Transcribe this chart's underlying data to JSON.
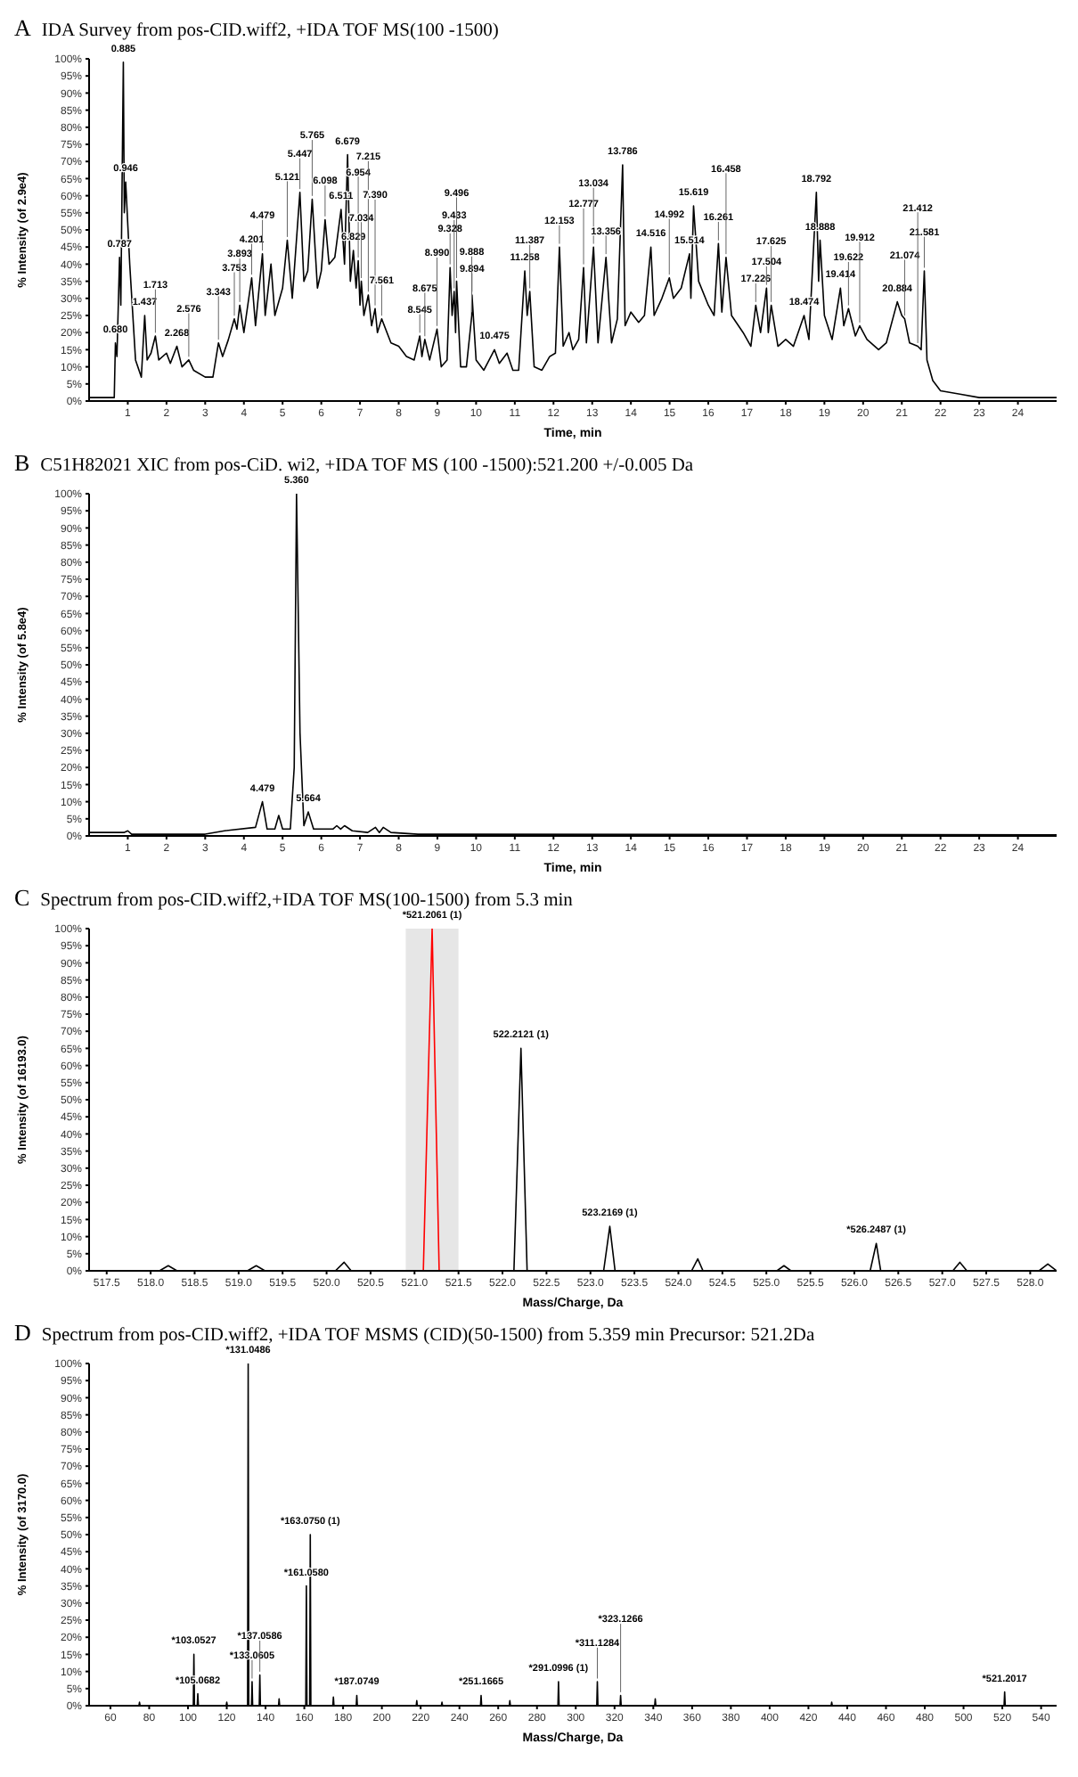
{
  "chart_data": [
    {
      "type": "line",
      "title": "IDA Survey from pos-CID.wiff2, +IDA TOF MS(100 -1500)",
      "xlabel": "Time, min",
      "ylabel": "% Intensity (of 2.9e4)",
      "xlim": [
        0,
        25
      ],
      "xticks": [
        1,
        2,
        3,
        4,
        5,
        6,
        7,
        8,
        9,
        10,
        11,
        12,
        13,
        14,
        15,
        16,
        17,
        18,
        19,
        20,
        21,
        22,
        23,
        24
      ],
      "ylim": [
        0,
        100
      ],
      "yticks": [
        {
          "value": 0,
          "label": "0%"
        },
        {
          "value": 5,
          "label": "5%"
        },
        {
          "value": 10,
          "label": "10%"
        },
        {
          "value": 15,
          "label": "15%"
        },
        {
          "value": 20,
          "label": "20%"
        },
        {
          "value": 25,
          "label": "25%"
        },
        {
          "value": 30,
          "label": "30%"
        },
        {
          "value": 35,
          "label": "35%"
        },
        {
          "value": 40,
          "label": "40%"
        },
        {
          "value": 45,
          "label": "45%"
        },
        {
          "value": 50,
          "label": "50%"
        },
        {
          "value": 55,
          "label": "55%"
        },
        {
          "value": 60,
          "label": "60%"
        },
        {
          "value": 65,
          "label": "65%"
        },
        {
          "value": 70,
          "label": "70%"
        },
        {
          "value": 75,
          "label": "75%"
        },
        {
          "value": 80,
          "label": "80%"
        },
        {
          "value": 85,
          "label": "85%"
        },
        {
          "value": 90,
          "label": "90%"
        },
        {
          "value": 95,
          "label": "95%"
        },
        {
          "value": 100,
          "label": "100%"
        }
      ],
      "series": [
        {
          "color": "#000000",
          "x": [
            0,
            0.6,
            0.65,
            0.68,
            0.72,
            0.787,
            0.82,
            0.885,
            0.91,
            0.946,
            1.05,
            1.2,
            1.35,
            1.437,
            1.5,
            1.6,
            1.713,
            1.8,
            2.0,
            2.1,
            2.268,
            2.4,
            2.576,
            2.7,
            3.0,
            3.2,
            3.343,
            3.45,
            3.6,
            3.753,
            3.82,
            3.893,
            4.0,
            4.201,
            4.3,
            4.479,
            4.55,
            4.7,
            4.8,
            5.0,
            5.121,
            5.25,
            5.447,
            5.55,
            5.65,
            5.765,
            5.9,
            6.0,
            6.098,
            6.2,
            6.35,
            6.511,
            6.6,
            6.679,
            6.75,
            6.829,
            6.9,
            6.954,
            7.0,
            7.034,
            7.1,
            7.215,
            7.3,
            7.39,
            7.45,
            7.561,
            7.8,
            8.0,
            8.2,
            8.4,
            8.545,
            8.6,
            8.675,
            8.8,
            8.99,
            9.1,
            9.25,
            9.328,
            9.38,
            9.433,
            9.47,
            9.496,
            9.6,
            9.75,
            9.888,
            9.894,
            10.0,
            10.2,
            10.475,
            10.6,
            10.8,
            10.95,
            11.1,
            11.258,
            11.32,
            11.387,
            11.5,
            11.7,
            11.9,
            12.05,
            12.153,
            12.25,
            12.4,
            12.5,
            12.65,
            12.777,
            12.85,
            13.034,
            13.15,
            13.356,
            13.5,
            13.65,
            13.786,
            13.85,
            14.0,
            14.2,
            14.35,
            14.516,
            14.6,
            14.8,
            14.992,
            15.1,
            15.3,
            15.514,
            15.55,
            15.619,
            15.75,
            16.0,
            16.15,
            16.261,
            16.35,
            16.458,
            16.6,
            16.9,
            17.1,
            17.226,
            17.35,
            17.504,
            17.55,
            17.625,
            17.8,
            18.0,
            18.2,
            18.474,
            18.6,
            18.792,
            18.85,
            18.888,
            19.0,
            19.2,
            19.414,
            19.5,
            19.622,
            19.8,
            19.912,
            20.1,
            20.4,
            20.6,
            20.884,
            21.0,
            21.074,
            21.2,
            21.412,
            21.5,
            21.581,
            21.65,
            21.8,
            22.0,
            22.5,
            23,
            24,
            25
          ],
          "values": [
            1,
            1,
            1,
            17,
            13,
            42,
            28,
            99,
            55,
            64,
            40,
            12,
            7,
            25,
            12,
            14,
            19,
            12,
            14,
            11,
            16,
            10,
            12,
            9,
            7,
            7,
            17,
            13,
            18,
            24,
            21,
            28,
            20,
            36,
            22,
            43,
            25,
            40,
            25,
            33,
            47,
            30,
            61,
            35,
            38,
            59,
            33,
            38,
            53,
            40,
            42,
            56,
            40,
            72,
            35,
            44,
            33,
            41,
            28,
            35,
            25,
            31,
            22,
            27,
            20,
            24,
            17,
            16,
            13,
            12,
            19,
            13,
            18,
            12,
            21,
            10,
            12,
            39,
            25,
            32,
            20,
            35,
            10,
            10,
            25,
            31,
            12,
            9,
            15,
            11,
            14,
            9,
            9,
            38,
            25,
            32,
            10,
            9,
            13,
            14,
            45,
            16,
            20,
            15,
            18,
            39,
            17,
            45,
            17,
            42,
            17,
            24,
            69,
            22,
            26,
            23,
            25,
            45,
            25,
            30,
            36,
            30,
            33,
            43,
            30,
            57,
            35,
            28,
            25,
            46,
            26,
            42,
            25,
            20,
            16,
            28,
            20,
            33,
            20,
            28,
            16,
            18,
            16,
            25,
            18,
            61,
            35,
            47,
            25,
            18,
            33,
            22,
            27,
            19,
            22,
            18,
            15,
            17,
            29,
            25,
            24,
            17,
            16,
            15,
            38,
            12,
            6,
            3,
            2,
            1,
            1,
            1
          ]
        }
      ],
      "annotations": [
        "A",
        {
          "text": "0.680",
          "x": 0.68,
          "y": 17
        },
        {
          "text": "0.787",
          "x": 0.787,
          "y": 42
        },
        {
          "text": "0.885",
          "x": 0.885,
          "y": 99
        },
        {
          "text": "0.946",
          "x": 0.946,
          "y": 64
        },
        {
          "text": "1.437",
          "x": 1.437,
          "y": 25
        },
        {
          "text": "1.713",
          "x": 1.713,
          "y": 19
        },
        {
          "text": "2.268",
          "x": 2.268,
          "y": 16
        },
        {
          "text": "2.576",
          "x": 2.576,
          "y": 12
        },
        {
          "text": "3.343",
          "x": 3.343,
          "y": 17
        },
        {
          "text": "3.753",
          "x": 3.753,
          "y": 24
        },
        {
          "text": "3.893",
          "x": 3.893,
          "y": 28
        },
        {
          "text": "4.201",
          "x": 4.201,
          "y": 36
        },
        {
          "text": "4.479",
          "x": 4.479,
          "y": 43
        },
        {
          "text": "5.121",
          "x": 5.121,
          "y": 47
        },
        {
          "text": "5.447",
          "x": 5.447,
          "y": 61
        },
        {
          "text": "5.765",
          "x": 5.765,
          "y": 59
        },
        {
          "text": "6.098",
          "x": 6.098,
          "y": 53
        },
        {
          "text": "6.511",
          "x": 6.511,
          "y": 56
        },
        {
          "text": "6.679",
          "x": 6.679,
          "y": 72
        },
        {
          "text": "6.829",
          "x": 6.829,
          "y": 44
        },
        {
          "text": "6.954",
          "x": 6.954,
          "y": 41
        },
        {
          "text": "7.034",
          "x": 7.034,
          "y": 35
        },
        {
          "text": "7.215",
          "x": 7.215,
          "y": 31
        },
        {
          "text": "7.390",
          "x": 7.39,
          "y": 27
        },
        {
          "text": "7.561",
          "x": 7.561,
          "y": 24
        },
        {
          "text": "8.545",
          "x": 8.545,
          "y": 19
        },
        {
          "text": "8.675",
          "x": 8.675,
          "y": 18
        },
        {
          "text": "8.990",
          "x": 8.99,
          "y": 21
        },
        {
          "text": "9.328",
          "x": 9.328,
          "y": 39
        },
        {
          "text": "9.433",
          "x": 9.433,
          "y": 32
        },
        {
          "text": "9.496",
          "x": 9.496,
          "y": 35
        },
        {
          "text": "9.894",
          "x": 9.894,
          "y": 31
        },
        {
          "text": "9.888",
          "x": 9.888,
          "y": 25
        },
        {
          "text": "10.475",
          "x": 10.475,
          "y": 15
        },
        {
          "text": "11.258",
          "x": 11.258,
          "y": 38
        },
        {
          "text": "11.387",
          "x": 11.387,
          "y": 32
        },
        {
          "text": "12.153",
          "x": 12.153,
          "y": 45
        },
        {
          "text": "12.777",
          "x": 12.777,
          "y": 39
        },
        {
          "text": "13.034",
          "x": 13.034,
          "y": 45
        },
        {
          "text": "13.356",
          "x": 13.356,
          "y": 42
        },
        {
          "text": "13.786",
          "x": 13.786,
          "y": 69
        },
        {
          "text": "14.516",
          "x": 14.516,
          "y": 45
        },
        {
          "text": "14.992",
          "x": 14.992,
          "y": 36
        },
        {
          "text": "15.514",
          "x": 15.514,
          "y": 43
        },
        {
          "text": "15.619",
          "x": 15.619,
          "y": 57
        },
        {
          "text": "16.261",
          "x": 16.261,
          "y": 46
        },
        {
          "text": "16.458",
          "x": 16.458,
          "y": 42
        },
        {
          "text": "17.226",
          "x": 17.226,
          "y": 28
        },
        {
          "text": "17.504",
          "x": 17.504,
          "y": 33
        },
        {
          "text": "17.625",
          "x": 17.625,
          "y": 28
        },
        {
          "text": "18.474",
          "x": 18.474,
          "y": 25
        },
        {
          "text": "18.792",
          "x": 18.792,
          "y": 61
        },
        {
          "text": "18.888",
          "x": 18.888,
          "y": 47
        },
        {
          "text": "19.414",
          "x": 19.414,
          "y": 33
        },
        {
          "text": "19.622",
          "x": 19.622,
          "y": 27
        },
        {
          "text": "19.912",
          "x": 19.912,
          "y": 22
        },
        {
          "text": "20.884",
          "x": 20.884,
          "y": 29
        },
        {
          "text": "21.074",
          "x": 21.074,
          "y": 24
        },
        {
          "text": "21.581",
          "x": 21.581,
          "y": 38
        },
        {
          "text": "21.412",
          "x": 21.412,
          "y": 16
        }
      ]
    },
    {
      "type": "line",
      "title": "C51H82021 XIC from pos-CiD. wi2, +IDA TOF MS (100 -1500):521.200 +/-0.005 Da",
      "xlabel": "Time, min",
      "ylabel": "% Intensity (of 5.8e4)",
      "xlim": [
        0,
        25
      ],
      "xticks": [
        1,
        2,
        3,
        4,
        5,
        6,
        7,
        8,
        9,
        10,
        11,
        12,
        13,
        14,
        15,
        16,
        17,
        18,
        19,
        20,
        21,
        22,
        23,
        24
      ],
      "ylim": [
        0,
        100
      ],
      "yticks": [
        {
          "value": 0,
          "label": "0%"
        },
        {
          "value": 5,
          "label": "5%"
        },
        {
          "value": 10,
          "label": "10%"
        },
        {
          "value": 15,
          "label": "15%"
        },
        {
          "value": 20,
          "label": "20%"
        },
        {
          "value": 25,
          "label": "25%"
        },
        {
          "value": 30,
          "label": "30%"
        },
        {
          "value": 35,
          "label": "35%"
        },
        {
          "value": 40,
          "label": "40%"
        },
        {
          "value": 45,
          "label": "45%"
        },
        {
          "value": 50,
          "label": "50%"
        },
        {
          "value": 55,
          "label": "55%"
        },
        {
          "value": 60,
          "label": "60%"
        },
        {
          "value": 65,
          "label": "65%"
        },
        {
          "value": 70,
          "label": "70%"
        },
        {
          "value": 75,
          "label": "75%"
        },
        {
          "value": 80,
          "label": "80%"
        },
        {
          "value": 85,
          "label": "85%"
        },
        {
          "value": 90,
          "label": "90%"
        },
        {
          "value": 95,
          "label": "95%"
        },
        {
          "value": 100,
          "label": "100%"
        }
      ],
      "series": [
        {
          "color": "#000000",
          "x": [
            0,
            0.9,
            1,
            1.1,
            3,
            3.5,
            4.3,
            4.479,
            4.6,
            4.8,
            4.9,
            5.0,
            5.2,
            5.3,
            5.36,
            5.45,
            5.55,
            5.664,
            5.8,
            6.3,
            6.4,
            6.5,
            6.6,
            6.8,
            7.2,
            7.4,
            7.5,
            7.6,
            7.8,
            8.5,
            25
          ],
          "values": [
            1,
            1,
            1.5,
            0.5,
            0.5,
            1.5,
            2.5,
            10,
            2,
            2,
            6,
            2,
            2,
            20,
            100,
            30,
            3,
            7,
            2,
            2,
            3,
            2,
            3,
            1.5,
            1,
            2.5,
            1,
            2.5,
            1,
            0.5,
            0.3
          ]
        }
      ],
      "annotations": [
        "B",
        {
          "text": "4.479",
          "x": 4.479,
          "y": 10
        },
        {
          "text": "5.360",
          "x": 5.36,
          "y": 100
        },
        {
          "text": "5.664",
          "x": 5.664,
          "y": 7
        }
      ]
    },
    {
      "type": "line",
      "title": "Spectrum from pos-CID.wiff2,+IDA TOF MS(100-1500) from 5.3 min",
      "xlabel": "Mass/Charge, Da",
      "ylabel": "% Intensity (of 16193.0)",
      "xlim": [
        517.3,
        528.3
      ],
      "xticks": [
        517.5,
        {
          "value": 518,
          "label": "518.0"
        },
        518.5,
        {
          "value": 519,
          "label": "519.0"
        },
        519.5,
        {
          "value": 520,
          "label": "520.0"
        },
        520.5,
        {
          "value": 521,
          "label": "521.0"
        },
        521.5,
        {
          "value": 522,
          "label": "522.0"
        },
        522.5,
        {
          "value": 523,
          "label": "523.0"
        },
        523.5,
        {
          "value": 524,
          "label": "524.0"
        },
        524.5,
        {
          "value": 525,
          "label": "525.0"
        },
        525.5,
        {
          "value": 526,
          "label": "526.0"
        },
        526.5,
        {
          "value": 527,
          "label": "527.0"
        },
        527.5,
        {
          "value": 528,
          "label": "528.0"
        }
      ],
      "ylim": [
        0,
        100
      ],
      "yticks": [
        {
          "value": 0,
          "label": "0%"
        },
        {
          "value": 5,
          "label": "5%"
        },
        {
          "value": 10,
          "label": "10%"
        },
        {
          "value": 15,
          "label": "15%"
        },
        {
          "value": 20,
          "label": "20%"
        },
        {
          "value": 25,
          "label": "25%"
        },
        {
          "value": 30,
          "label": "30%"
        },
        {
          "value": 35,
          "label": "35%"
        },
        {
          "value": 40,
          "label": "40%"
        },
        {
          "value": 45,
          "label": "45%"
        },
        {
          "value": 50,
          "label": "50%"
        },
        {
          "value": 55,
          "label": "55%"
        },
        {
          "value": 60,
          "label": "60%"
        },
        {
          "value": 65,
          "label": "65%"
        },
        {
          "value": 70,
          "label": "70%"
        },
        {
          "value": 75,
          "label": "75%"
        },
        {
          "value": 80,
          "label": "80%"
        },
        {
          "value": 85,
          "label": "85%"
        },
        {
          "value": 90,
          "label": "90%"
        },
        {
          "value": 95,
          "label": "95%"
        },
        {
          "value": 100,
          "label": "100%"
        }
      ],
      "bands": [
        {
          "axis": "x",
          "from": 520.9,
          "to": 521.5,
          "color": "#e6e6e6"
        }
      ],
      "series": [
        {
          "color": "#000000",
          "x": [
            517.3,
            518.1,
            518.2,
            518.3,
            519.1,
            519.2,
            519.3,
            520.1,
            520.2,
            520.28,
            522.13,
            522.21,
            522.28,
            523.15,
            523.22,
            523.28,
            524.15,
            524.22,
            524.28,
            525.12,
            525.2,
            525.28,
            526.18,
            526.25,
            526.3,
            527.12,
            527.2,
            527.28,
            528.1,
            528.2,
            528.3
          ],
          "values": [
            0,
            0,
            1.5,
            0,
            0,
            1.5,
            0,
            0,
            2.5,
            0,
            0,
            65,
            0,
            0,
            13,
            0,
            0,
            3.5,
            0,
            0,
            1.5,
            0,
            0,
            8,
            0,
            0,
            2.5,
            0,
            0,
            2,
            0
          ]
        },
        {
          "color": "#ff0000",
          "x": [
            521.1,
            521.2,
            521.28
          ],
          "values": [
            0,
            100,
            0
          ]
        }
      ],
      "annotations": [
        "C",
        {
          "text": "*521.2061 (1)",
          "x": 521.2,
          "y": 100
        },
        {
          "text": "522.2121 (1)",
          "x": 522.21,
          "y": 65
        },
        {
          "text": "523.2169 (1)",
          "x": 523.22,
          "y": 13
        },
        {
          "text": "*526.2487 (1)",
          "x": 526.25,
          "y": 8
        }
      ]
    },
    {
      "type": "line",
      "title": "Spectrum from pos-CID.wiff2, +IDA TOF MSMS (CID)(50-1500) from 5.359 min Precursor: 521.2Da",
      "xlabel": "Mass/Charge, Da",
      "ylabel": "% Intensity (of 3170.0)",
      "xlim": [
        49,
        548
      ],
      "xticks": [
        60,
        80,
        100,
        120,
        140,
        160,
        180,
        200,
        220,
        240,
        260,
        280,
        300,
        320,
        340,
        360,
        380,
        400,
        420,
        440,
        460,
        480,
        500,
        520,
        540
      ],
      "ylim": [
        0,
        100
      ],
      "yticks": [
        {
          "value": 0,
          "label": "0%"
        },
        {
          "value": 5,
          "label": "5%"
        },
        {
          "value": 10,
          "label": "10%"
        },
        {
          "value": 15,
          "label": "15%"
        },
        {
          "value": 20,
          "label": "20%"
        },
        {
          "value": 25,
          "label": "25%"
        },
        {
          "value": 30,
          "label": "30%"
        },
        {
          "value": 35,
          "label": "35%"
        },
        {
          "value": 40,
          "label": "40%"
        },
        {
          "value": 45,
          "label": "45%"
        },
        {
          "value": 50,
          "label": "50%"
        },
        {
          "value": 55,
          "label": "55%"
        },
        {
          "value": 60,
          "label": "60%"
        },
        {
          "value": 65,
          "label": "65%"
        },
        {
          "value": 70,
          "label": "70%"
        },
        {
          "value": 75,
          "label": "75%"
        },
        {
          "value": 80,
          "label": "80%"
        },
        {
          "value": 85,
          "label": "85%"
        },
        {
          "value": 90,
          "label": "90%"
        },
        {
          "value": 95,
          "label": "95%"
        },
        {
          "value": 100,
          "label": "100%"
        }
      ],
      "series": [
        {
          "color": "#000000",
          "x": [
            49,
            74.7,
            75,
            75.3,
            102.75,
            103.05,
            103.35,
            104.77,
            105.07,
            105.37,
            119.7,
            120,
            120.3,
            130.75,
            131.05,
            131.35,
            132.76,
            133.06,
            133.36,
            136.76,
            137.06,
            137.36,
            146.7,
            147,
            147.3,
            160.76,
            161.06,
            161.36,
            162.78,
            163.08,
            163.38,
            174.7,
            175,
            175.3,
            186.77,
            187.07,
            187.37,
            217.7,
            218,
            218.3,
            230.7,
            231,
            231.3,
            250.87,
            251.17,
            251.47,
            265.7,
            266,
            266.3,
            290.8,
            291.1,
            291.4,
            310.83,
            311.13,
            311.43,
            322.83,
            323.13,
            323.43,
            340.7,
            341,
            341.3,
            431.7,
            432,
            432.3,
            520.9,
            521.2,
            521.5,
            548
          ],
          "values": [
            0,
            0,
            1,
            0,
            0,
            15,
            0,
            0,
            3.5,
            0,
            0,
            1,
            0,
            0,
            100,
            0,
            0,
            7,
            0,
            0,
            9,
            0,
            0,
            2,
            0,
            0,
            35,
            0,
            0,
            50,
            0,
            0,
            2.5,
            0,
            0,
            3,
            0,
            0,
            1.5,
            0,
            0,
            1,
            0,
            0,
            3,
            0,
            0,
            1.5,
            0,
            0,
            7,
            0,
            0,
            7,
            0,
            0,
            3,
            0,
            0,
            2,
            0,
            0,
            1,
            0,
            0,
            4,
            0,
            0
          ]
        }
      ],
      "annotations": [
        "D",
        {
          "text": "*103.0527",
          "x": 103.05,
          "y": 15
        },
        {
          "text": "*105.0682",
          "x": 105.07,
          "y": 3.5
        },
        {
          "text": "*131.0486",
          "x": 131.05,
          "y": 100
        },
        {
          "text": "*133.0605",
          "x": 133.06,
          "y": 7
        },
        {
          "text": "*137.0586",
          "x": 137.06,
          "y": 9
        },
        {
          "text": "*161.0580",
          "x": 161.06,
          "y": 35
        },
        {
          "text": "*163.0750 (1)",
          "x": 163.08,
          "y": 50
        },
        {
          "text": "*187.0749",
          "x": 187.07,
          "y": 3
        },
        {
          "text": "*251.1665",
          "x": 251.17,
          "y": 3
        },
        {
          "text": "*291.0996 (1)",
          "x": 291.1,
          "y": 7
        },
        {
          "text": "*311.1284",
          "x": 311.13,
          "y": 7
        },
        {
          "text": "*323.1266",
          "x": 323.13,
          "y": 3
        },
        {
          "text": "*521.2017",
          "x": 521.2,
          "y": 4
        }
      ]
    }
  ]
}
